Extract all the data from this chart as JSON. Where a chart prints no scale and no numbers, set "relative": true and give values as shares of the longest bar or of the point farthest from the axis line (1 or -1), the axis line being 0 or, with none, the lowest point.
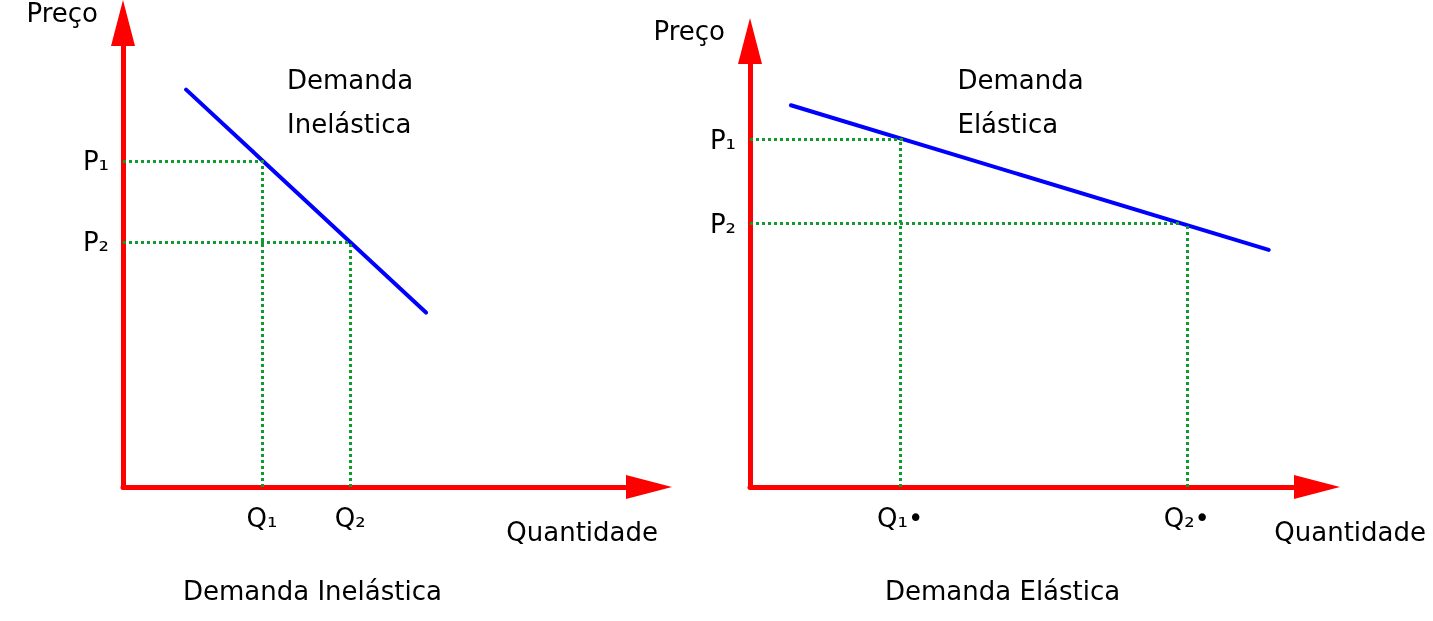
{
  "chart_data": [
    {
      "type": "line",
      "relative": true,
      "title": "Demanda Inelástica",
      "xlabel": "Quantidade",
      "ylabel": "Preço",
      "annotations": [
        "Demanda\nInelástica"
      ],
      "categories": [
        null,
        null,
        null,
        null,
        null,
        null,
        null,
        null,
        null,
        null,
        null,
        "Q₁",
        null,
        null,
        null,
        null,
        null,
        null,
        "Q₂",
        null,
        null,
        null,
        null,
        null,
        null,
        null,
        null,
        null,
        null,
        null,
        null,
        null,
        null,
        null,
        null,
        null,
        null,
        null,
        null,
        null,
        null
      ],
      "series": [
        {
          "color": "#0000ff",
          "values": [
            null,
            null,
            null,
            null,
            null,
            1,
            null,
            null,
            null,
            null,
            null,
            null,
            null,
            null,
            null,
            null,
            null,
            null,
            null,
            null,
            null,
            null,
            null,
            null,
            0.439,
            null,
            null,
            null,
            null,
            null,
            null,
            null,
            null,
            null,
            null,
            null,
            null,
            null,
            null,
            null,
            null
          ]
        }
      ],
      "ref_lines": [
        {
          "axis": "y",
          "value": 0.82,
          "label": "P₁",
          "color": "#109a30",
          "line_style": "dotted"
        },
        {
          "axis": "y",
          "value": 0.616,
          "label": "P₂",
          "color": "#109a30",
          "line_style": "dotted"
        },
        {
          "axis": "x",
          "value": "Q₁",
          "color": "#109a30",
          "line_style": "dotted"
        },
        {
          "axis": "x",
          "value": "Q₂",
          "color": "#109a30",
          "line_style": "dotted"
        }
      ],
      "marker": "none",
      "line_style": "solid",
      "grid": false
    },
    {
      "type": "line",
      "relative": true,
      "title": "Demanda Elástica",
      "xlabel": "Quantidade",
      "ylabel": "Preço",
      "annotations": [
        "Demanda\nElástica"
      ],
      "categories": [
        null,
        null,
        null,
        null,
        null,
        null,
        null,
        null,
        null,
        null,
        null,
        "Q₁•",
        null,
        null,
        null,
        null,
        null,
        null,
        null,
        null,
        null,
        null,
        null,
        null,
        null,
        null,
        null,
        null,
        null,
        null,
        null,
        null,
        "Q₂•",
        null,
        null,
        null,
        null,
        null,
        null,
        null,
        null
      ],
      "series": [
        {
          "color": "#0000ff",
          "values": [
            null,
            null,
            null,
            1,
            null,
            null,
            null,
            null,
            null,
            null,
            null,
            null,
            null,
            null,
            null,
            null,
            null,
            null,
            null,
            null,
            null,
            null,
            null,
            null,
            null,
            null,
            null,
            null,
            null,
            null,
            null,
            null,
            null,
            null,
            null,
            null,
            null,
            null,
            0.621,
            null,
            null
          ]
        }
      ],
      "ref_lines": [
        {
          "axis": "y",
          "value": 0.91,
          "label": "P₁",
          "color": "#109a30",
          "line_style": "dotted"
        },
        {
          "axis": "y",
          "value": 0.69,
          "label": "P₂",
          "color": "#109a30",
          "line_style": "dotted"
        },
        {
          "axis": "x",
          "value": "Q₁•",
          "color": "#109a30",
          "line_style": "dotted"
        },
        {
          "axis": "x",
          "value": "Q₂•",
          "color": "#109a30",
          "line_style": "dotted"
        }
      ],
      "marker": "none",
      "line_style": "solid",
      "grid": false
    }
  ]
}
